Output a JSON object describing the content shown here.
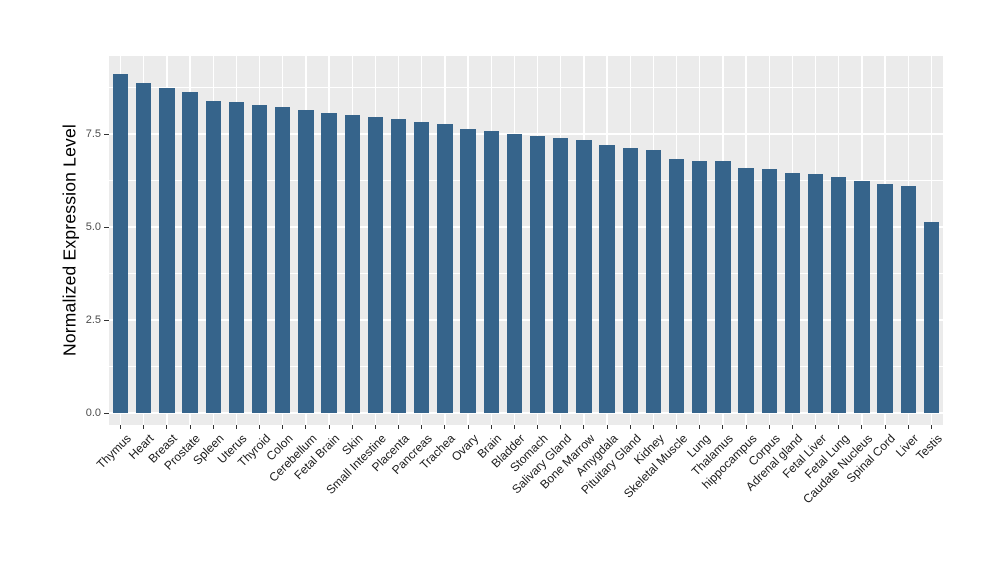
{
  "chart_data": {
    "type": "bar",
    "title": "",
    "xlabel": "",
    "ylabel": "Normalized Expression Level",
    "legend": "none",
    "grid": "white major and minor gridlines on gray panel",
    "ylim": [
      0,
      9.6
    ],
    "categories": [
      "Thymus",
      "Heart",
      "Breast",
      "Prostate",
      "Spleen",
      "Uterus",
      "Thyroid",
      "Colon",
      "Cerebellum",
      "Fetal Brain",
      "Skin",
      "Small Intestine",
      "Placenta",
      "Pancreas",
      "Trachea",
      "Ovary",
      "Brain",
      "Bladder",
      "Stomach",
      "Salivary Gland",
      "Bone Marrow",
      "Amygdala",
      "Pituitary Gland",
      "Kidney",
      "Skeletal Muscle",
      "Lung",
      "Thalamus",
      "hippocampus",
      "Corpus",
      "Adrenal gland",
      "Fetal Liver",
      "Fetal Lung",
      "Caudate Nucleus",
      "Spinal Cord",
      "Liver",
      "Testis"
    ],
    "values": [
      9.11,
      8.87,
      8.75,
      8.63,
      8.4,
      8.36,
      8.27,
      8.22,
      8.15,
      8.06,
      8.01,
      7.97,
      7.9,
      7.82,
      7.77,
      7.63,
      7.58,
      7.49,
      7.44,
      7.38,
      7.35,
      7.2,
      7.12,
      7.06,
      6.82,
      6.78,
      6.77,
      6.58,
      6.56,
      6.44,
      6.42,
      6.34,
      6.24,
      6.15,
      6.1,
      5.14
    ],
    "y_ticks": [
      {
        "value": 0.0,
        "label": "0.0"
      },
      {
        "value": 2.5,
        "label": "2.5"
      },
      {
        "value": 5.0,
        "label": "5.0"
      },
      {
        "value": 7.5,
        "label": "7.5"
      }
    ],
    "y_minor_ticks": [
      1.25,
      3.75,
      6.25,
      8.75
    ],
    "x_tick_angle": 45,
    "colors": {
      "bar": "#36648B",
      "panel_bg": "#EBEBEB",
      "grid": "#FFFFFF",
      "axis_text": "#4D4D4D",
      "x_label_text": "#1A1A1A",
      "tick_mark": "#333333",
      "background": "#FFFFFF"
    }
  }
}
